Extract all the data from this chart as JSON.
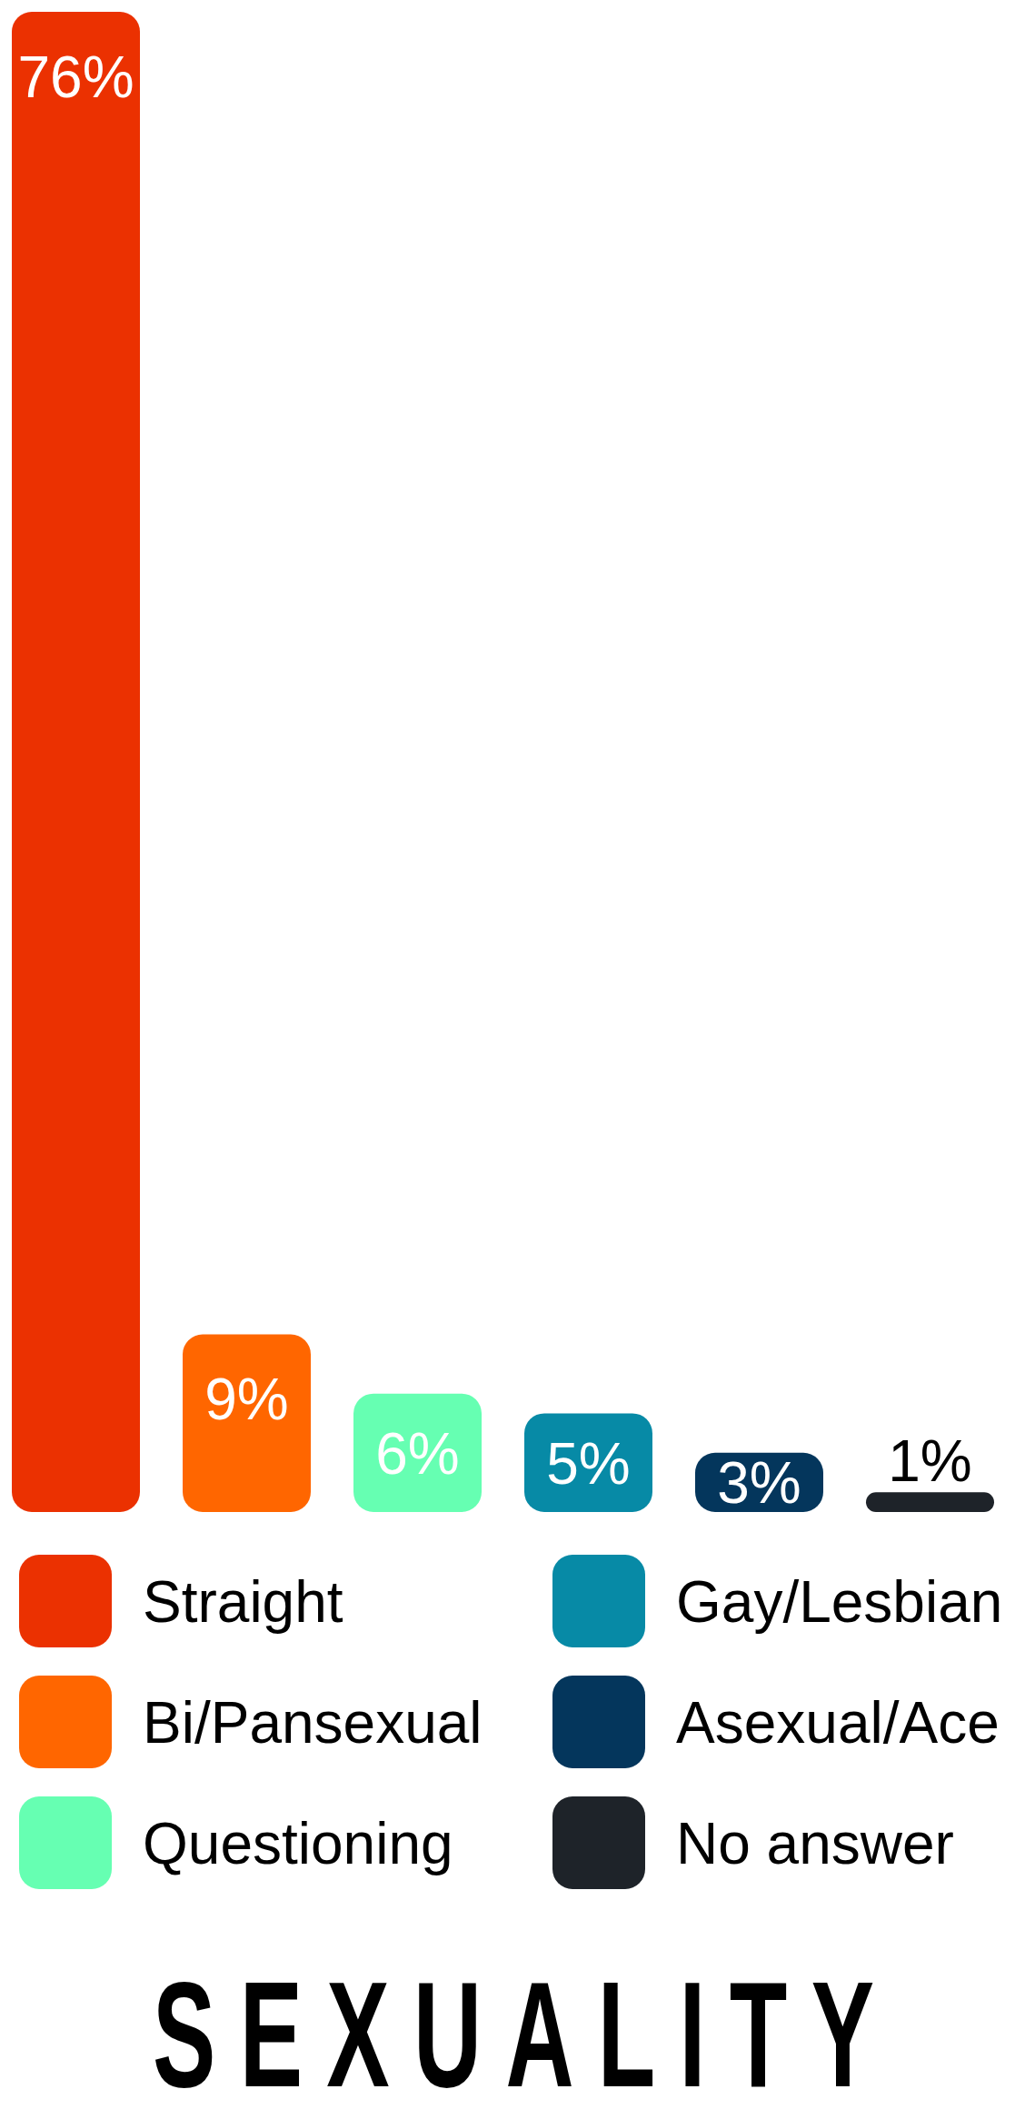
{
  "chart_data": {
    "type": "bar",
    "title": "SEXUALITY",
    "categories": [
      null,
      null,
      null,
      null,
      null,
      null
    ],
    "stacked": true,
    "series": [
      {
        "name": "Straight",
        "color": "#eb3101",
        "values": [
          76,
          null,
          null,
          null,
          null,
          null
        ],
        "value_labels": [
          "76%",
          null,
          null,
          null,
          null,
          null
        ]
      },
      {
        "name": "Bi/Pansexual",
        "color": "#ff6600",
        "values": [
          null,
          9,
          null,
          null,
          null,
          null
        ],
        "value_labels": [
          null,
          "9%",
          null,
          null,
          null,
          null
        ]
      },
      {
        "name": "Questioning",
        "color": "#66ffb2",
        "values": [
          null,
          null,
          6,
          null,
          null,
          null
        ],
        "value_labels": [
          null,
          null,
          "6%",
          null,
          null,
          null
        ]
      },
      {
        "name": "Gay/Lesbian",
        "color": "#078aa6",
        "values": [
          null,
          null,
          null,
          5,
          null,
          null
        ],
        "value_labels": [
          null,
          null,
          null,
          "5%",
          null,
          null
        ]
      },
      {
        "name": "Asexual/Ace",
        "color": "#04365c",
        "values": [
          null,
          null,
          null,
          null,
          3,
          null
        ],
        "value_labels": [
          null,
          null,
          null,
          null,
          "3%",
          null
        ]
      },
      {
        "name": "No answer",
        "color": "#1e2329",
        "values": [
          null,
          null,
          null,
          null,
          null,
          1
        ],
        "value_labels": [
          null,
          null,
          null,
          null,
          null,
          "1%"
        ]
      }
    ],
    "legend": "bottom"
  }
}
